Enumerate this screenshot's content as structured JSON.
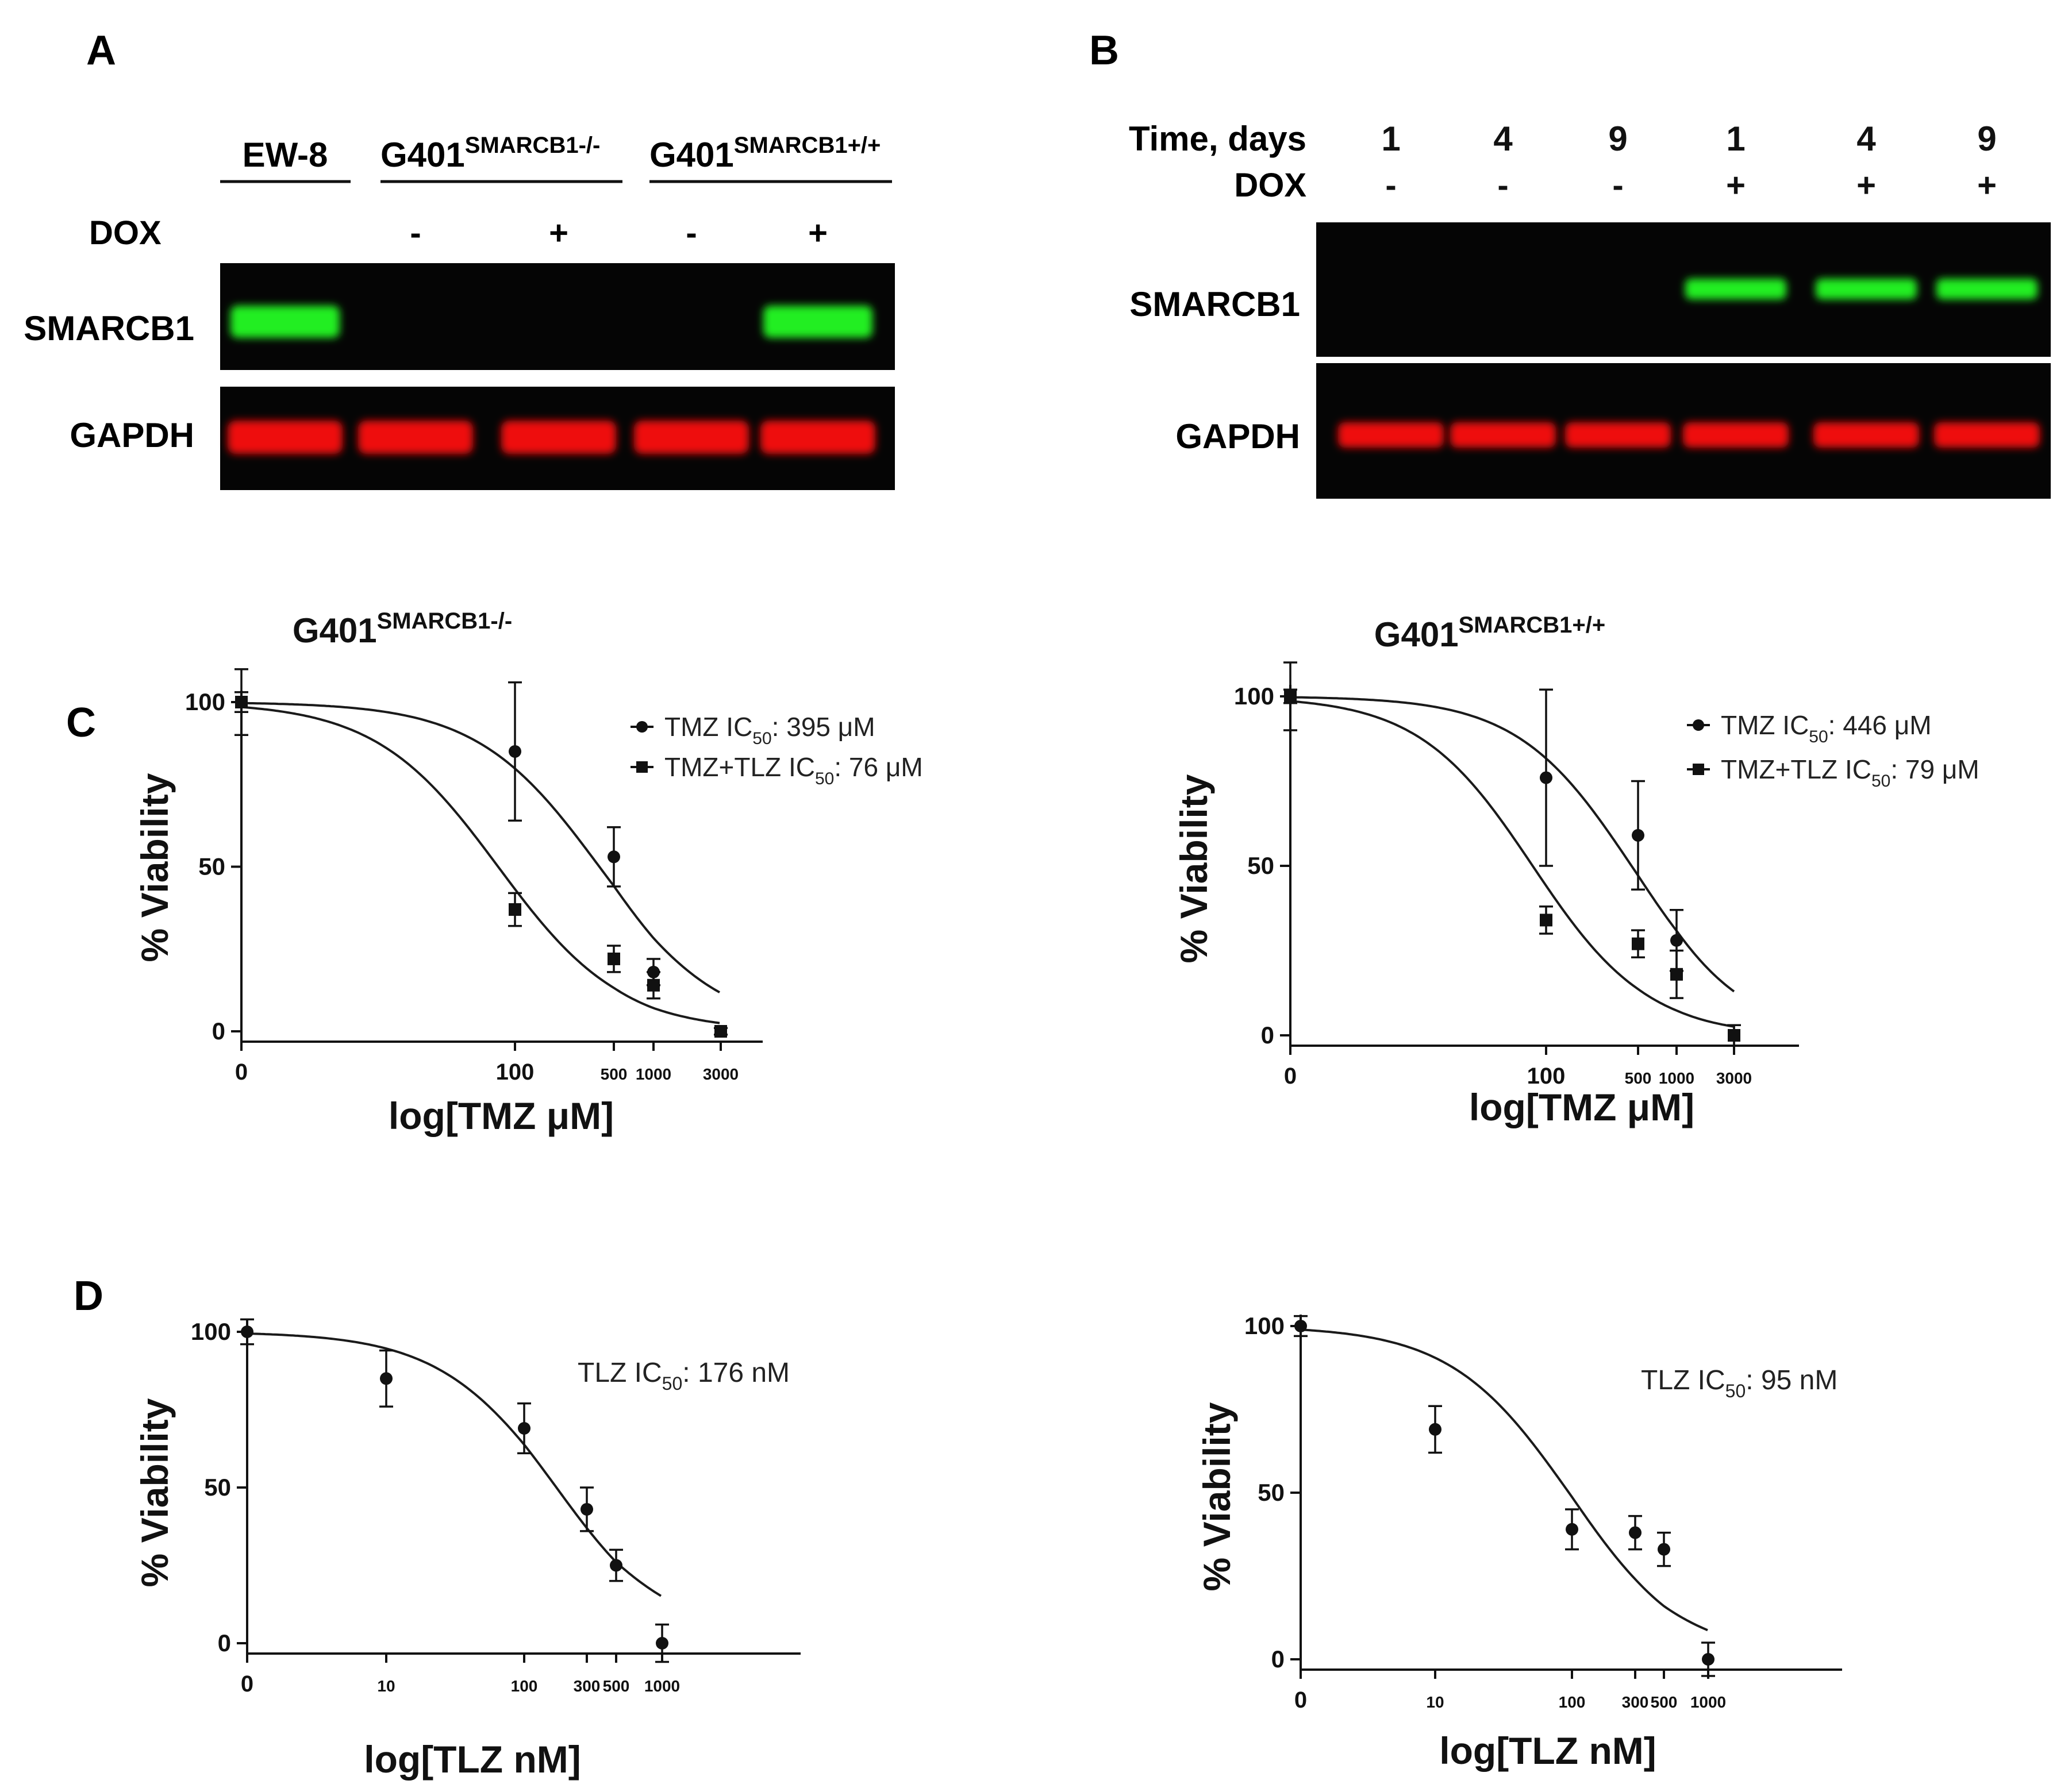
{
  "panels": {
    "A": {
      "letter": "A",
      "group_labels": [
        "EW-8",
        "G401",
        "G401"
      ],
      "group_sups": [
        "",
        "SMARCB1-/-",
        "SMARCB1+/+"
      ],
      "dox_label": "DOX",
      "dox_values": [
        "-",
        "+",
        "-",
        "+"
      ],
      "row_labels": [
        "SMARCB1",
        "GAPDH"
      ],
      "bands": {
        "smarcb1_present": [
          true,
          false,
          false,
          false,
          true
        ],
        "gapdh_present": [
          true,
          true,
          true,
          true,
          true
        ]
      }
    },
    "B": {
      "letter": "B",
      "time_label": "Time, days",
      "time_values": [
        "1",
        "4",
        "9",
        "1",
        "4",
        "9"
      ],
      "dox_label": "DOX",
      "dox_values": [
        "-",
        "-",
        "-",
        "+",
        "+",
        "+"
      ],
      "row_labels": [
        "SMARCB1",
        "GAPDH"
      ],
      "bands": {
        "smarcb1_present": [
          false,
          false,
          false,
          true,
          true,
          true
        ],
        "gapdh_present": [
          true,
          true,
          true,
          true,
          true,
          true
        ]
      }
    },
    "C": {
      "letter": "C"
    },
    "D": {
      "letter": "D"
    }
  },
  "colors": {
    "blot_bg": "#050505",
    "smarcb1_band": "#22ee22",
    "gapdh_band": "#ee1111",
    "ink": "#111111"
  },
  "chart_data": [
    {
      "panel": "C",
      "type": "scatter",
      "title": "G401",
      "title_sup": "SMARCB1-/-",
      "xlabel": "log[TMZ μM]",
      "ylabel": "% Viability",
      "x_scale": "log",
      "x_ticks": [
        "0",
        "100",
        "500",
        "1000",
        "3000"
      ],
      "y_ticks": [
        "0",
        "50",
        "100"
      ],
      "ylim": [
        0,
        100
      ],
      "legend_placement": "top-right",
      "series": [
        {
          "name": "TMZ IC50: 395 μM",
          "legend_parts": [
            "TMZ IC",
            "50",
            ": 395 μM"
          ],
          "marker": "circle",
          "ic50": 395,
          "points": [
            {
              "x": 0,
              "y": 100,
              "err": 3
            },
            {
              "x": 100,
              "y": 85,
              "err": 21
            },
            {
              "x": 500,
              "y": 53,
              "err": 9
            },
            {
              "x": 1000,
              "y": 18,
              "err": 4
            },
            {
              "x": 3000,
              "y": 0,
              "err": 1
            }
          ]
        },
        {
          "name": "TMZ+TLZ IC50: 76 μM",
          "legend_parts": [
            "TMZ+TLZ IC",
            "50",
            ": 76 μM"
          ],
          "marker": "square",
          "ic50": 76,
          "points": [
            {
              "x": 0,
              "y": 100,
              "err": 10
            },
            {
              "x": 100,
              "y": 37,
              "err": 5
            },
            {
              "x": 500,
              "y": 22,
              "err": 4
            },
            {
              "x": 1000,
              "y": 14,
              "err": 4
            },
            {
              "x": 3000,
              "y": 0,
              "err": 1
            }
          ]
        }
      ]
    },
    {
      "panel": "C",
      "type": "scatter",
      "title": "G401",
      "title_sup": "SMARCB1+/+",
      "xlabel": "log[TMZ μM]",
      "ylabel": "% Viability",
      "x_scale": "log",
      "x_ticks": [
        "0",
        "100",
        "500",
        "1000",
        "3000"
      ],
      "y_ticks": [
        "0",
        "50",
        "100"
      ],
      "ylim": [
        0,
        100
      ],
      "legend_placement": "top-right",
      "series": [
        {
          "name": "TMZ IC50: 446 μM",
          "legend_parts": [
            "TMZ IC",
            "50",
            ": 446 μM"
          ],
          "marker": "circle",
          "ic50": 446,
          "points": [
            {
              "x": 0,
              "y": 100,
              "err": 2
            },
            {
              "x": 100,
              "y": 76,
              "err": 26
            },
            {
              "x": 500,
              "y": 59,
              "err": 16
            },
            {
              "x": 1000,
              "y": 28,
              "err": 9
            },
            {
              "x": 3000,
              "y": 0,
              "err": 3
            }
          ]
        },
        {
          "name": "TMZ+TLZ IC50: 79 μM",
          "legend_parts": [
            "TMZ+TLZ IC",
            "50",
            ": 79 μM"
          ],
          "marker": "square",
          "ic50": 79,
          "points": [
            {
              "x": 0,
              "y": 100,
              "err": 10
            },
            {
              "x": 100,
              "y": 34,
              "err": 4
            },
            {
              "x": 500,
              "y": 27,
              "err": 4
            },
            {
              "x": 1000,
              "y": 18,
              "err": 7
            },
            {
              "x": 3000,
              "y": 0,
              "err": 3
            }
          ]
        }
      ]
    },
    {
      "panel": "D",
      "type": "scatter",
      "xlabel": "log[TLZ nM]",
      "ylabel": "% Viability",
      "x_scale": "log",
      "x_ticks": [
        "0",
        "10",
        "100",
        "300",
        "500",
        "1000"
      ],
      "y_ticks": [
        "0",
        "50",
        "100"
      ],
      "ylim": [
        0,
        100
      ],
      "annotation_parts": [
        "TLZ IC",
        "50",
        ": 176 nM"
      ],
      "series": [
        {
          "name": "TLZ IC50: 176 nM",
          "marker": "circle",
          "ic50": 176,
          "points": [
            {
              "x": 0,
              "y": 100,
              "err": 4
            },
            {
              "x": 10,
              "y": 85,
              "err": 9
            },
            {
              "x": 100,
              "y": 69,
              "err": 8
            },
            {
              "x": 300,
              "y": 43,
              "err": 7
            },
            {
              "x": 500,
              "y": 25,
              "err": 5
            },
            {
              "x": 1000,
              "y": 0,
              "err": 6
            }
          ]
        }
      ]
    },
    {
      "panel": "D",
      "type": "scatter",
      "xlabel": "log[TLZ nM]",
      "ylabel": "% Viability",
      "x_scale": "log",
      "x_ticks": [
        "0",
        "10",
        "100",
        "300",
        "500",
        "1000"
      ],
      "y_ticks": [
        "0",
        "50",
        "100"
      ],
      "ylim": [
        0,
        100
      ],
      "annotation_parts": [
        "TLZ IC",
        "50",
        ": 95 nM"
      ],
      "series": [
        {
          "name": "TLZ IC50: 95 nM",
          "marker": "circle",
          "ic50": 95,
          "points": [
            {
              "x": 0,
              "y": 100,
              "err": 3
            },
            {
              "x": 10,
              "y": 69,
              "err": 7
            },
            {
              "x": 100,
              "y": 39,
              "err": 6
            },
            {
              "x": 300,
              "y": 38,
              "err": 5
            },
            {
              "x": 500,
              "y": 33,
              "err": 5
            },
            {
              "x": 1000,
              "y": 0,
              "err": 5
            }
          ]
        }
      ]
    }
  ]
}
